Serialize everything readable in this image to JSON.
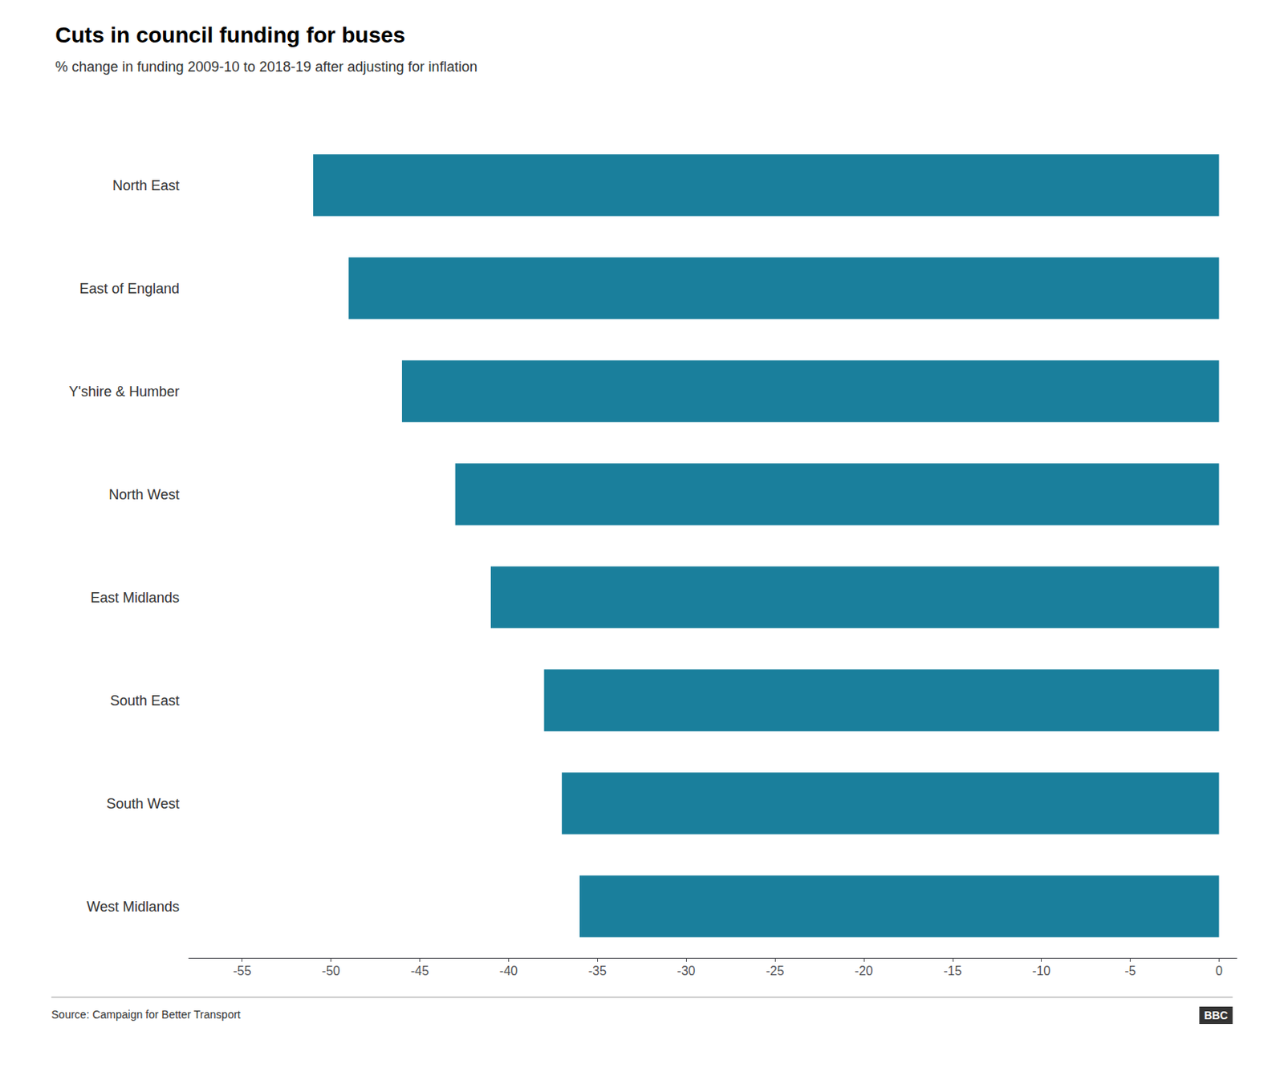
{
  "chart_data": {
    "type": "bar",
    "orientation": "horizontal",
    "title": "Cuts in council funding for buses",
    "subtitle": "% change in funding 2009-10 to 2018-19 after adjusting for inflation",
    "annotations": [
      "Source: Campaign for Better Transport",
      "BBC"
    ],
    "categories": [
      "North East",
      "East of England",
      "Y'shire & Humber",
      "North West",
      "East Midlands",
      "South East",
      "South West",
      "West Midlands"
    ],
    "values": [
      -51,
      -49,
      -46,
      -43,
      -41,
      -38,
      -37,
      -36
    ],
    "color": "#1a7f9c",
    "xlim": [
      -58,
      1
    ],
    "xticks": [
      -55,
      -50,
      -45,
      -40,
      -35,
      -30,
      -25,
      -20,
      -15,
      -10,
      -5,
      0
    ],
    "grid": false
  }
}
